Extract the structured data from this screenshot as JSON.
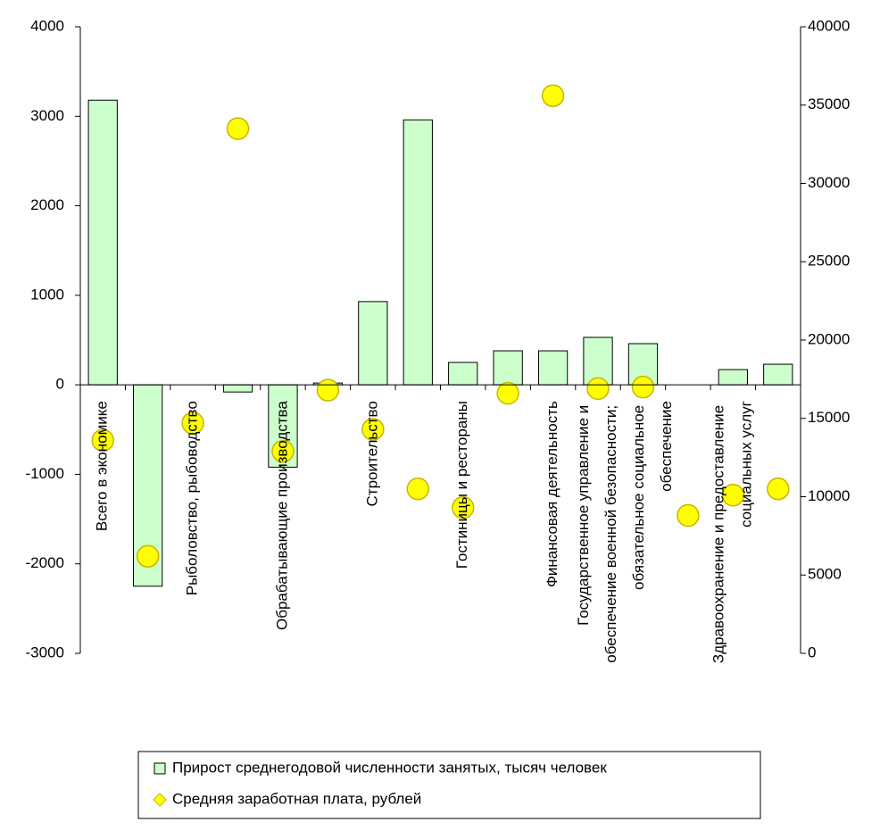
{
  "chart_data": {
    "type": "bar",
    "categories": [
      "Всего в экономике",
      null,
      "Рыболовство, рыбоводство",
      null,
      "Обрабатывающие производства",
      null,
      "Строительство",
      null,
      "Гостиницы и рестораны",
      null,
      "Финансовая деятельность",
      "Государственное управление и обеспечение военной безопасности; обязательное социальное обеспечение",
      null,
      null,
      "Здравоохранение и предоставление социальных услуг",
      null
    ],
    "series": [
      {
        "name": "Прирост среднегодовой численности занятых, тысяч человек",
        "type": "bar",
        "color": "#ccffcc",
        "values": [
          3180,
          -2250,
          0,
          -80,
          -920,
          20,
          930,
          2960,
          250,
          380,
          380,
          530,
          460,
          0,
          170,
          230
        ]
      },
      {
        "name": "Средняя заработная плата, рублей",
        "type": "scatter",
        "axis": "y2",
        "color": "#ffff00",
        "values": [
          13600,
          6200,
          14700,
          33500,
          12900,
          16800,
          14300,
          10500,
          9300,
          16600,
          35600,
          16900,
          17000,
          8800,
          10100,
          10500
        ]
      }
    ],
    "ylim": [
      -3000,
      4000
    ],
    "yticks": [
      -3000,
      -2000,
      -1000,
      0,
      1000,
      2000,
      3000,
      4000
    ],
    "y2lim": [
      0,
      40000
    ],
    "y2ticks": [
      0,
      5000,
      10000,
      15000,
      20000,
      25000,
      30000,
      35000,
      40000
    ],
    "legend": "bottom"
  }
}
